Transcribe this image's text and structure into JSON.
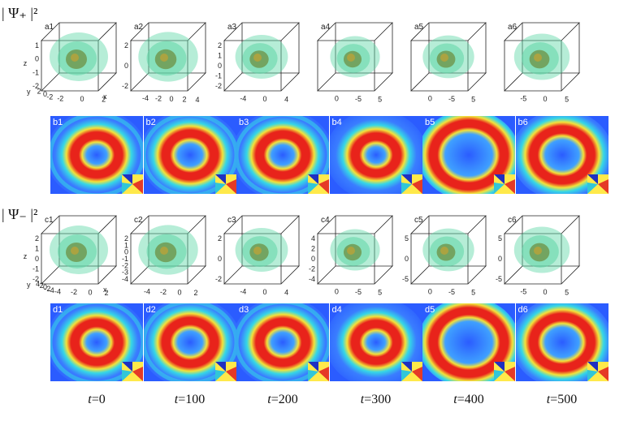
{
  "labels": {
    "psi_plus": "| Ψ₊ |²",
    "psi_minus": "| Ψ₋ |²"
  },
  "row_a": [
    {
      "tag": "a1",
      "z_ticks": [
        "1",
        "0",
        "-1",
        "-2"
      ],
      "x_ticks": [
        "-2",
        "0",
        "2"
      ],
      "y_ticks": [
        "2",
        "0",
        "-2"
      ],
      "axis_x": "x",
      "axis_y": "y",
      "axis_z": "z"
    },
    {
      "tag": "a2",
      "z_ticks": [
        "2",
        "0",
        "-2"
      ],
      "x_ticks": [
        "-4",
        "-2",
        "0",
        "2",
        "4"
      ],
      "y_ticks": [],
      "axis_x": "",
      "axis_y": "",
      "axis_z": ""
    },
    {
      "tag": "a3",
      "z_ticks": [
        "2",
        "1",
        "0",
        "-1",
        "-2"
      ],
      "x_ticks": [
        "-4",
        "0",
        "4"
      ],
      "y_ticks": [],
      "axis_x": "",
      "axis_y": "",
      "axis_z": ""
    },
    {
      "tag": "a4",
      "z_ticks": [],
      "x_ticks": [
        "0",
        "-5",
        "5"
      ],
      "y_ticks": [],
      "axis_x": "",
      "axis_y": "",
      "axis_z": ""
    },
    {
      "tag": "a5",
      "z_ticks": [],
      "x_ticks": [
        "0",
        "-5",
        "5"
      ],
      "y_ticks": [],
      "axis_x": "",
      "axis_y": "",
      "axis_z": ""
    },
    {
      "tag": "a6",
      "z_ticks": [],
      "x_ticks": [
        "-5",
        "0",
        "5"
      ],
      "y_ticks": [],
      "axis_x": "",
      "axis_y": "",
      "axis_z": ""
    }
  ],
  "row_b": [
    "b1",
    "b2",
    "b3",
    "b4",
    "b5",
    "b6"
  ],
  "row_c": [
    {
      "tag": "c1",
      "z_ticks": [
        "2",
        "1",
        "0",
        "-1",
        "-2"
      ],
      "x_ticks": [
        "-4",
        "-2",
        "0",
        "2"
      ],
      "y_ticks": [
        "4",
        "2",
        "0",
        "-2",
        "-4"
      ],
      "axis_x": "x",
      "axis_y": "y",
      "axis_z": "z"
    },
    {
      "tag": "c2",
      "z_ticks": [
        "2",
        "1",
        "0",
        "-1",
        "-2",
        "-3",
        "-4"
      ],
      "x_ticks": [
        "-4",
        "-2",
        "0",
        "2"
      ],
      "y_ticks": [],
      "axis_x": "",
      "axis_y": "",
      "axis_z": ""
    },
    {
      "tag": "c3",
      "z_ticks": [
        "2",
        "0",
        "-2"
      ],
      "x_ticks": [
        "-4",
        "0",
        "4"
      ],
      "y_ticks": [],
      "axis_x": "",
      "axis_y": "",
      "axis_z": ""
    },
    {
      "tag": "c4",
      "z_ticks": [
        "4",
        "2",
        "0",
        "-2",
        "-4"
      ],
      "x_ticks": [
        "0",
        "-5",
        "5"
      ],
      "y_ticks": [],
      "axis_x": "",
      "axis_y": "",
      "axis_z": ""
    },
    {
      "tag": "c5",
      "z_ticks": [
        "5",
        "0",
        "-5"
      ],
      "x_ticks": [
        "0",
        "-5",
        "5"
      ],
      "y_ticks": [],
      "axis_x": "",
      "axis_y": "",
      "axis_z": ""
    },
    {
      "tag": "c6",
      "z_ticks": [
        "5",
        "0",
        "-5"
      ],
      "x_ticks": [
        "-5",
        "0",
        "5"
      ],
      "y_ticks": [],
      "axis_x": "",
      "axis_y": "",
      "axis_z": ""
    }
  ],
  "row_d": [
    "d1",
    "d2",
    "d3",
    "d4",
    "d5",
    "d6"
  ],
  "times": [
    {
      "var": "t",
      "value": "=0"
    },
    {
      "var": "t",
      "value": "=100"
    },
    {
      "var": "t",
      "value": "=200"
    },
    {
      "var": "t",
      "value": "=300"
    },
    {
      "var": "t",
      "value": "=400"
    },
    {
      "var": "t",
      "value": "=500"
    }
  ],
  "colors": {
    "iso_surface": "#5ed6a6",
    "iso_core": "#6b8a3a",
    "heat_background": "#2b5cff",
    "heat_red": "#e8231b",
    "heat_yellow": "#f3e23a",
    "heat_cyan": "#35d7e6"
  }
}
